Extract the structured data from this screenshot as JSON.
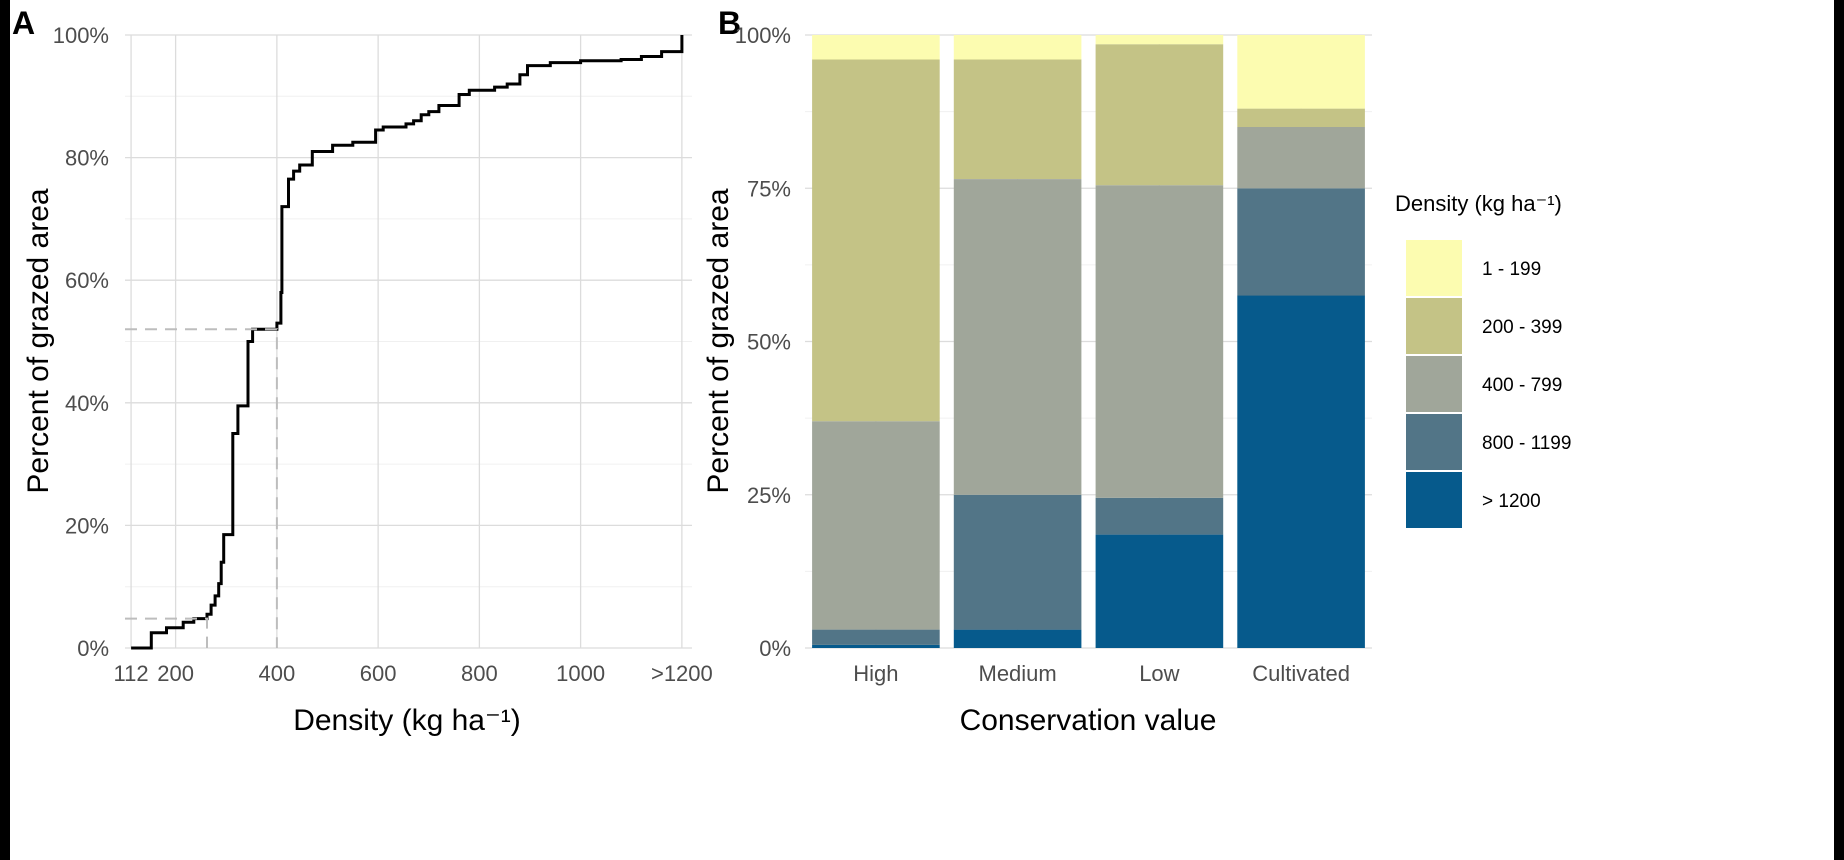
{
  "panels": [
    {
      "label": "A",
      "chart_data": {
        "type": "line",
        "xlabel": "Density (kg ha⁻¹)",
        "ylabel": "Percent of grazed area",
        "xlim": [
          100,
          1220
        ],
        "ylim": [
          0,
          100
        ],
        "x_ticks": [
          {
            "value": 112,
            "label": "112"
          },
          {
            "value": 200,
            "label": "200"
          },
          {
            "value": 400,
            "label": "400"
          },
          {
            "value": 600,
            "label": "600"
          },
          {
            "value": 800,
            "label": "800"
          },
          {
            "value": 1000,
            "label": "1000"
          },
          {
            "value": 1200,
            "label": ">1200"
          }
        ],
        "y_ticks": [
          {
            "value": 0,
            "label": "0%"
          },
          {
            "value": 20,
            "label": "20%"
          },
          {
            "value": 40,
            "label": "40%"
          },
          {
            "value": 60,
            "label": "60%"
          },
          {
            "value": 80,
            "label": "80%"
          },
          {
            "value": 100,
            "label": "100%"
          }
        ],
        "grid": true,
        "series": [
          {
            "color": "#000000",
            "step": true,
            "points": [
              [
                112,
                0
              ],
              [
                152,
                0
              ],
              [
                152,
                2.5
              ],
              [
                182,
                2.5
              ],
              [
                182,
                3.3
              ],
              [
                215,
                3.3
              ],
              [
                215,
                4.2
              ],
              [
                236,
                4.2
              ],
              [
                236,
                4.8
              ],
              [
                262,
                4.8
              ],
              [
                262,
                5.5
              ],
              [
                270,
                5.5
              ],
              [
                270,
                7
              ],
              [
                278,
                7
              ],
              [
                278,
                8.5
              ],
              [
                285,
                8.5
              ],
              [
                285,
                10.5
              ],
              [
                290,
                10.5
              ],
              [
                290,
                14
              ],
              [
                295,
                14
              ],
              [
                295,
                18.5
              ],
              [
                313,
                18.5
              ],
              [
                313,
                35
              ],
              [
                323,
                35
              ],
              [
                323,
                39.5
              ],
              [
                343,
                39.5
              ],
              [
                343,
                50
              ],
              [
                352,
                50
              ],
              [
                352,
                52
              ],
              [
                400,
                52
              ],
              [
                400,
                53
              ],
              [
                408,
                53
              ],
              [
                408,
                58
              ],
              [
                410,
                58
              ],
              [
                410,
                72
              ],
              [
                423,
                72
              ],
              [
                423,
                76.5
              ],
              [
                433,
                76.5
              ],
              [
                433,
                77.8
              ],
              [
                445,
                77.8
              ],
              [
                445,
                78.8
              ],
              [
                470,
                78.8
              ],
              [
                470,
                81
              ],
              [
                510,
                81
              ],
              [
                510,
                82
              ],
              [
                550,
                82
              ],
              [
                550,
                82.5
              ],
              [
                595,
                82.5
              ],
              [
                595,
                84.5
              ],
              [
                610,
                84.5
              ],
              [
                610,
                85
              ],
              [
                655,
                85
              ],
              [
                655,
                85.5
              ],
              [
                670,
                85.5
              ],
              [
                670,
                86
              ],
              [
                685,
                86
              ],
              [
                685,
                87
              ],
              [
                700,
                87
              ],
              [
                700,
                87.5
              ],
              [
                720,
                87.5
              ],
              [
                720,
                88.5
              ],
              [
                760,
                88.5
              ],
              [
                760,
                90.3
              ],
              [
                780,
                90.3
              ],
              [
                780,
                91
              ],
              [
                830,
                91
              ],
              [
                830,
                91.5
              ],
              [
                855,
                91.5
              ],
              [
                855,
                92
              ],
              [
                880,
                92
              ],
              [
                880,
                93.5
              ],
              [
                895,
                93.5
              ],
              [
                895,
                95
              ],
              [
                940,
                95
              ],
              [
                940,
                95.5
              ],
              [
                1000,
                95.5
              ],
              [
                1000,
                95.8
              ],
              [
                1080,
                95.8
              ],
              [
                1080,
                96
              ],
              [
                1120,
                96
              ],
              [
                1120,
                96.5
              ],
              [
                1160,
                96.5
              ],
              [
                1160,
                97.3
              ],
              [
                1200,
                97.3
              ],
              [
                1200,
                100
              ]
            ]
          },
          {
            "color": "#bdbdbd",
            "dashed": true,
            "points": [
              [
                100,
                52
              ],
              [
                400,
                52
              ],
              [
                400,
                0
              ]
            ]
          },
          {
            "color": "#bdbdbd",
            "dashed": true,
            "points": [
              [
                100,
                4.8
              ],
              [
                262,
                4.8
              ],
              [
                262,
                0
              ]
            ]
          }
        ]
      }
    },
    {
      "label": "B",
      "chart_data": {
        "type": "bar",
        "stacked": true,
        "xlabel": "Conservation value",
        "ylabel": "Percent of grazed area",
        "ylim": [
          0,
          100
        ],
        "y_ticks": [
          {
            "value": 0,
            "label": "0%"
          },
          {
            "value": 25,
            "label": "25%"
          },
          {
            "value": 50,
            "label": "50%"
          },
          {
            "value": 75,
            "label": "75%"
          },
          {
            "value": 100,
            "label": "100%"
          }
        ],
        "categories": [
          "High",
          "Medium",
          "Low",
          "Cultivated"
        ],
        "grid": true,
        "legend": {
          "title": "Density (kg ha⁻¹)",
          "position": "right"
        },
        "series": [
          {
            "name": "> 1200",
            "color": "#065a8c",
            "values": [
              0.5,
              3,
              18.5,
              57.5
            ]
          },
          {
            "name": "800 - 1199",
            "color": "#527587",
            "values": [
              2.5,
              22,
              6,
              17.5
            ]
          },
          {
            "name": "400 - 799",
            "color": "#a0a69a",
            "values": [
              34,
              51.5,
              51,
              10
            ]
          },
          {
            "name": "200 - 399",
            "color": "#c4c386",
            "values": [
              59,
              19.5,
              23,
              3
            ]
          },
          {
            "name": "1 - 199",
            "color": "#fcfcb0",
            "values": [
              4,
              4,
              1.5,
              12
            ]
          }
        ]
      }
    }
  ]
}
